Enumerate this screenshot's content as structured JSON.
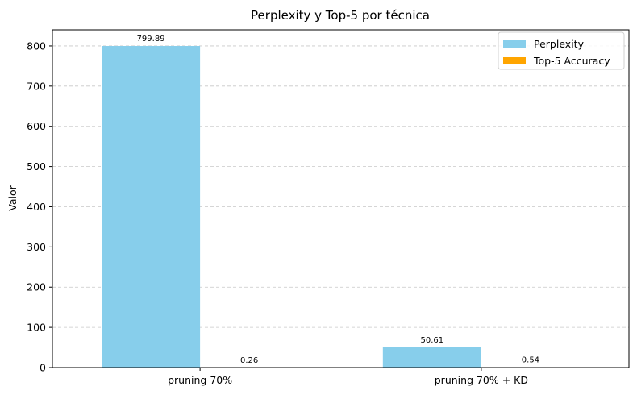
{
  "chart_data": {
    "type": "bar",
    "title": "Perplexity y Top-5 por técnica",
    "xlabel": "",
    "ylabel": "Valor",
    "categories": [
      "pruning 70%",
      "pruning 70% + KD"
    ],
    "series": [
      {
        "name": "Perplexity",
        "values": [
          799.89,
          50.61
        ],
        "value_labels": [
          "799.89",
          "50.61"
        ],
        "color": "#87CEEB"
      },
      {
        "name": "Top-5 Accuracy",
        "values": [
          0.26,
          0.54
        ],
        "value_labels": [
          "0.26",
          "0.54"
        ],
        "color": "#FFA500"
      }
    ],
    "ylim": [
      0,
      840
    ],
    "yticks": [
      0,
      100,
      200,
      300,
      400,
      500,
      600,
      700,
      800
    ],
    "grid": "y-dashed",
    "legend_position": "top-right"
  }
}
